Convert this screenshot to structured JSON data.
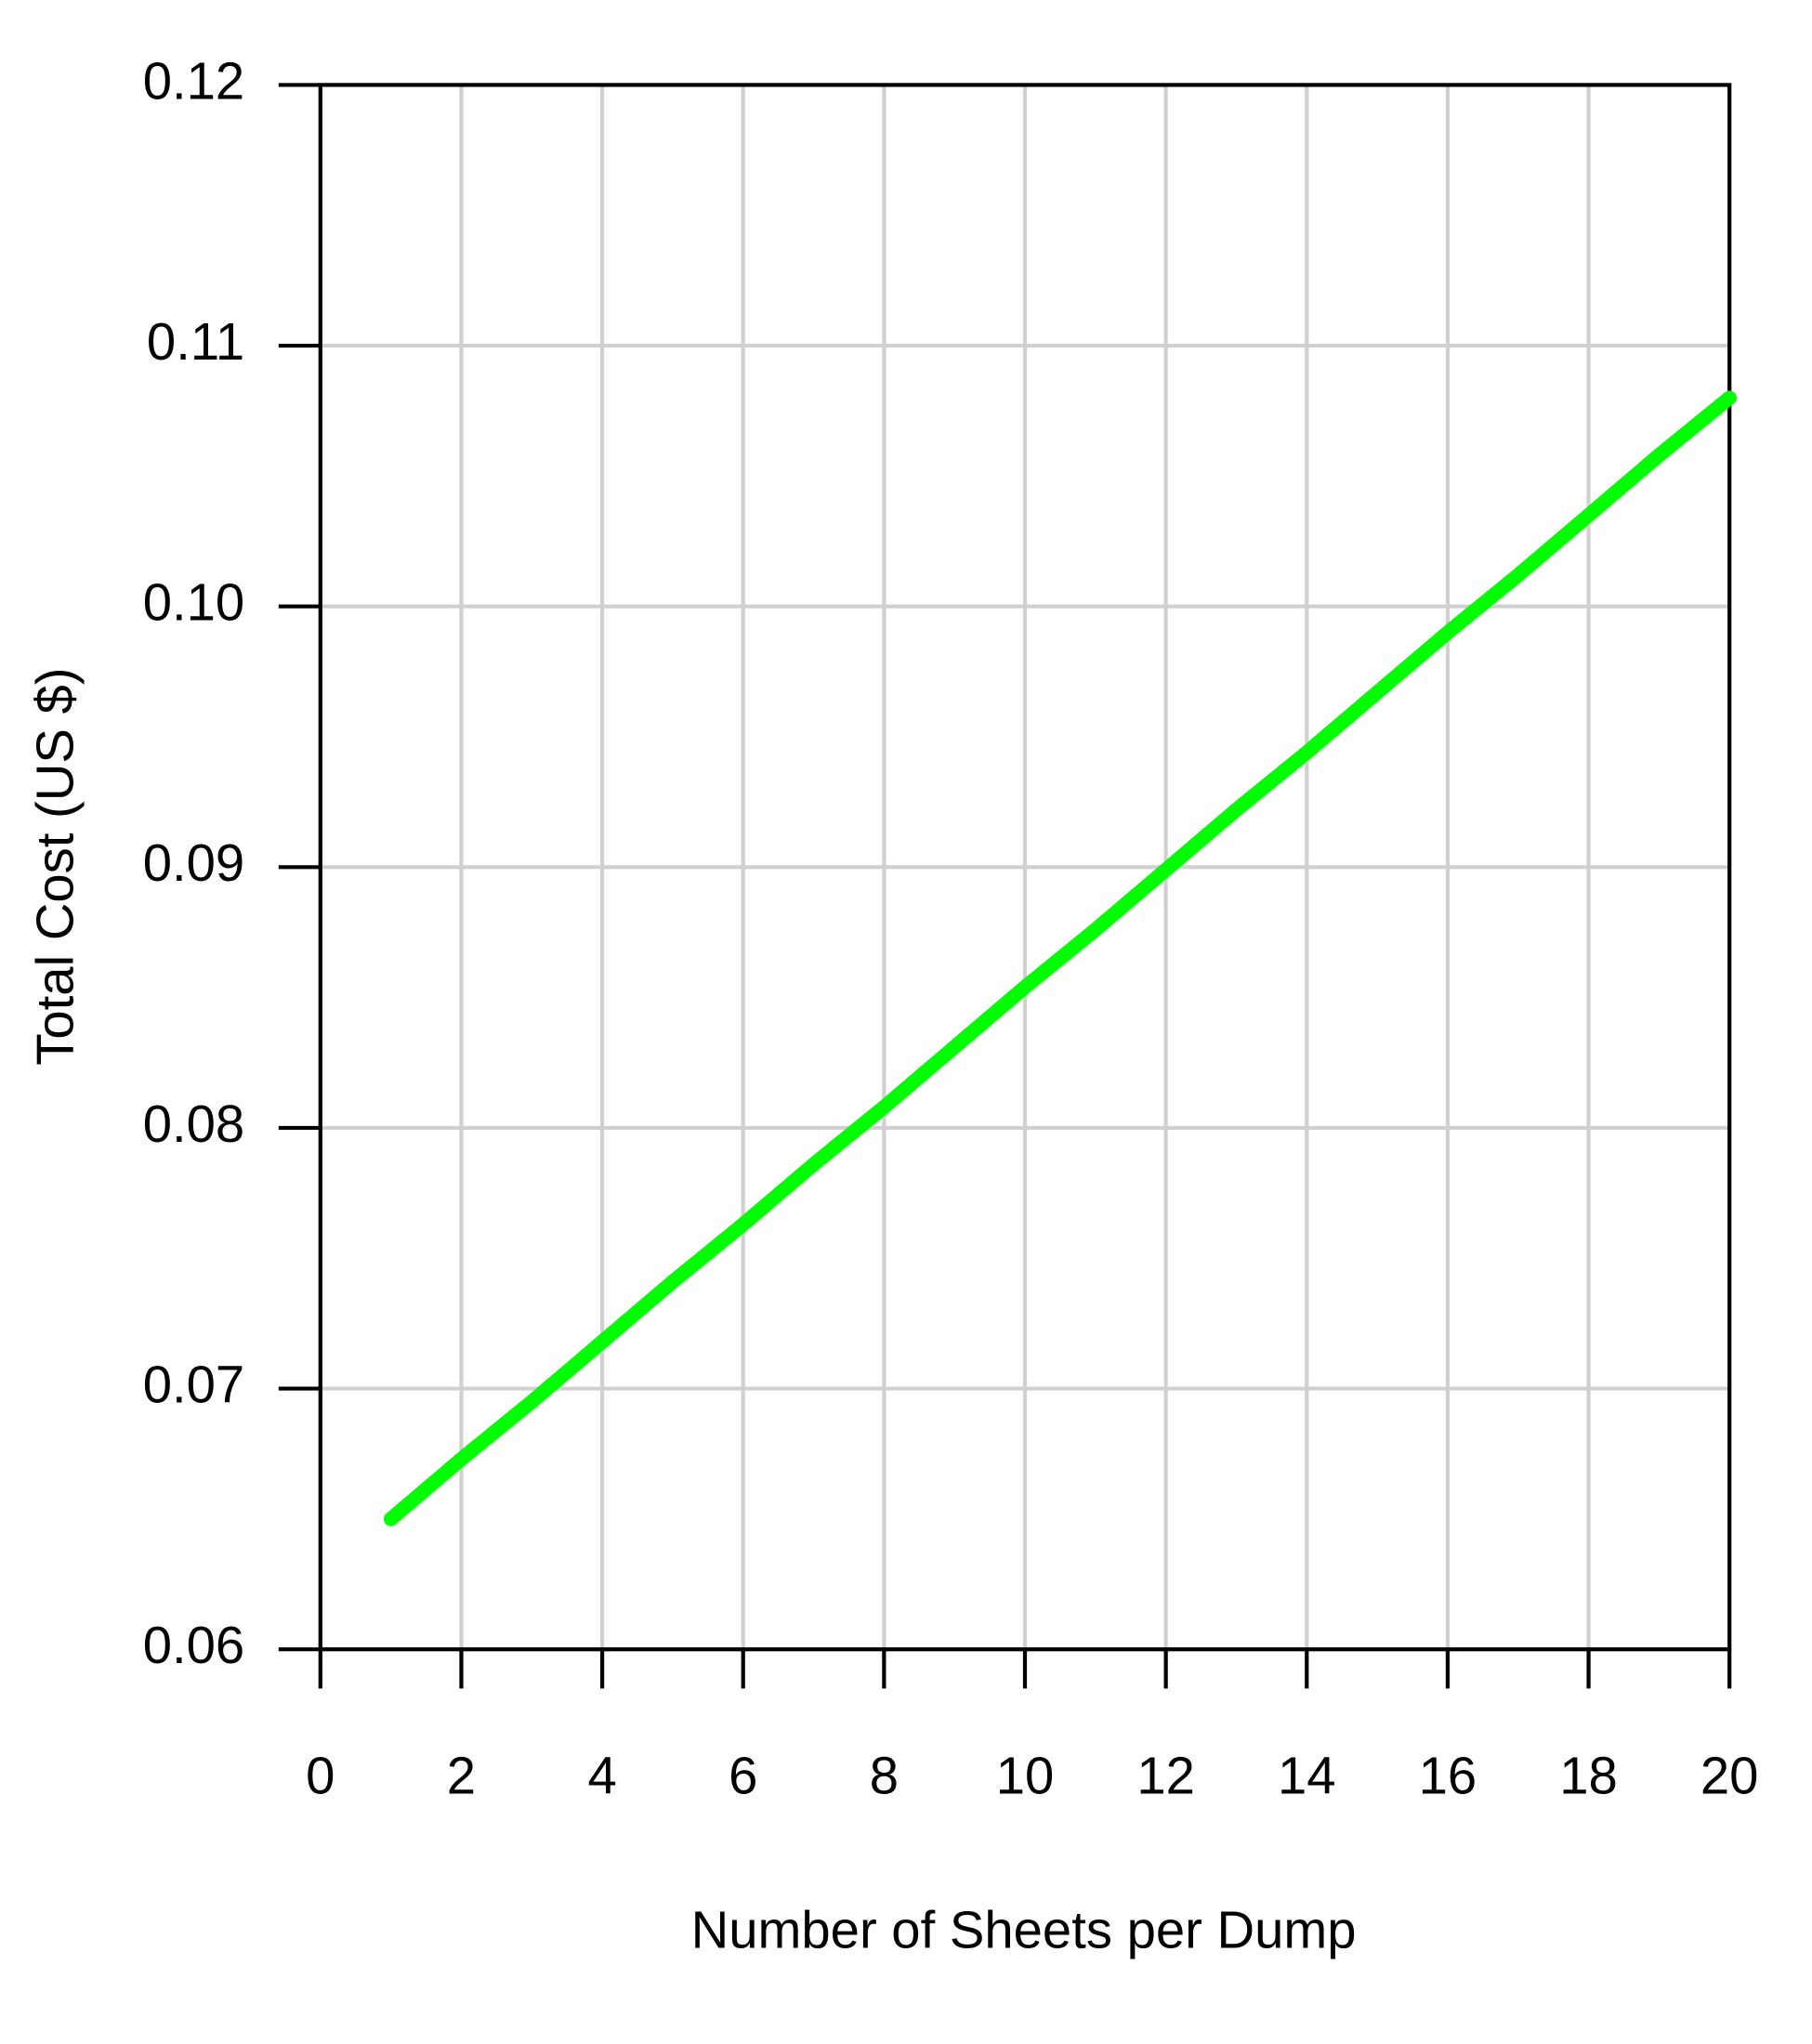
{
  "chart_data": {
    "type": "line",
    "xlabel": "Number of Sheets per Dump",
    "ylabel": "Total Cost (US $)",
    "x": [
      1,
      2,
      3,
      4,
      5,
      6,
      7,
      8,
      9,
      10,
      11,
      12,
      13,
      14,
      15,
      16,
      17,
      18,
      19,
      20
    ],
    "series": [
      {
        "color": "#00ff00",
        "values": [
          0.065,
          0.0673,
          0.0695,
          0.0718,
          0.0741,
          0.0763,
          0.0786,
          0.0808,
          0.0831,
          0.0854,
          0.0876,
          0.0899,
          0.0922,
          0.0944,
          0.0967,
          0.099,
          0.1012,
          0.1035,
          0.1058,
          0.108
        ]
      }
    ],
    "xlim": [
      0,
      20
    ],
    "xticks": [
      0,
      2,
      4,
      6,
      8,
      10,
      12,
      14,
      16,
      18,
      20
    ],
    "ylim": [
      0.06,
      0.12
    ],
    "yticks": [
      0.06,
      0.07,
      0.08,
      0.09,
      {
        "value": 0.1,
        "label": "0.10"
      },
      0.11,
      0.12
    ],
    "grid": true
  }
}
